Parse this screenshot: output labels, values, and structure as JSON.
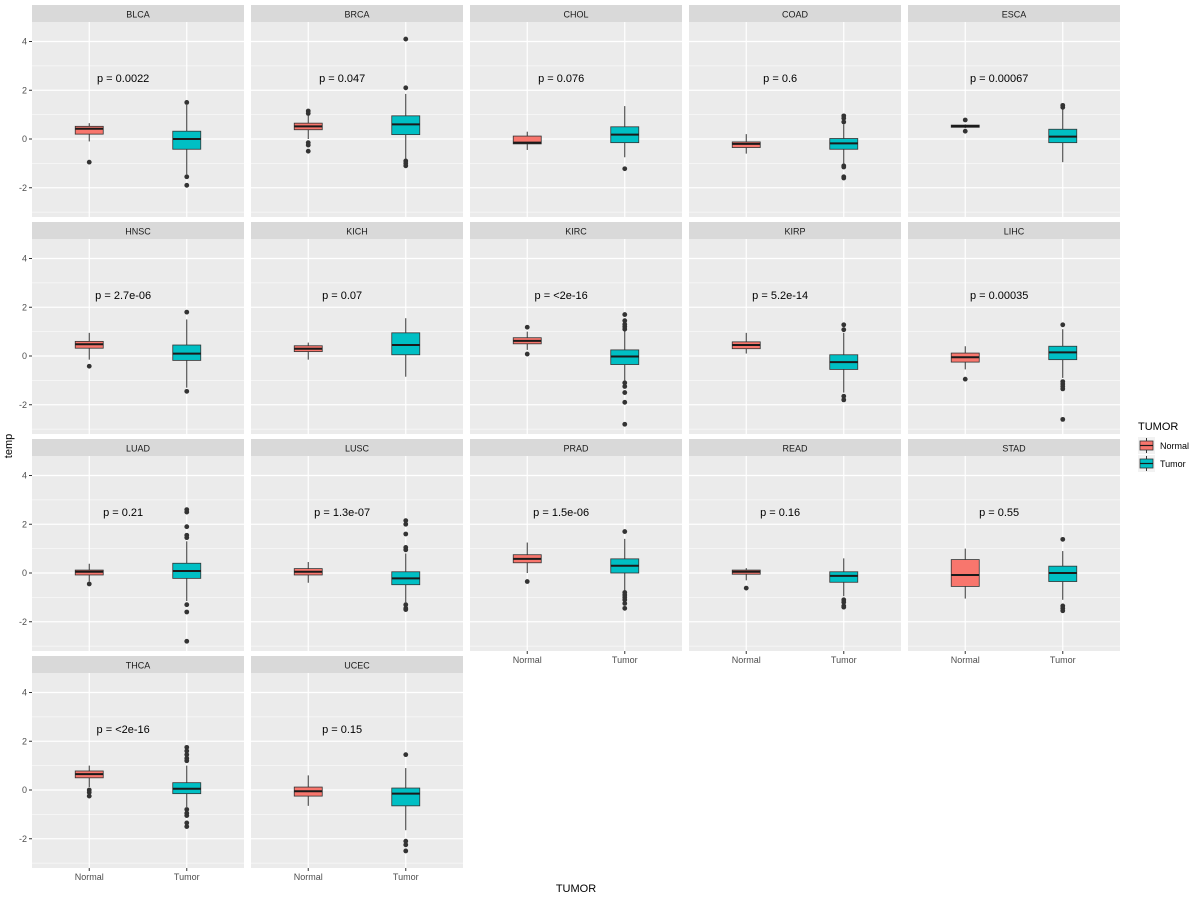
{
  "chart_data": {
    "type": "boxplot-facets",
    "xlabel": "TUMOR",
    "ylabel": "temp",
    "ylim": [
      -3.2,
      4.8
    ],
    "yticks": [
      -2,
      0,
      2,
      4
    ],
    "categories": [
      "Normal",
      "Tumor"
    ],
    "legend": {
      "title": "TUMOR",
      "position": "right",
      "entries": [
        {
          "label": "Normal",
          "color": "#F8766D"
        },
        {
          "label": "Tumor",
          "color": "#00BFC4"
        }
      ]
    },
    "colors": {
      "panel_bg": "#EBEBEB",
      "strip_bg": "#D9D9D9",
      "grid": "#FFFFFF",
      "normal": "#F8766D",
      "tumor": "#00BFC4",
      "outline": "#333333"
    },
    "facets": [
      {
        "name": "BLCA",
        "pvalue": "p = 0.0022",
        "normal": {
          "q1": 0.2,
          "median": 0.42,
          "q3": 0.52,
          "lower": -0.1,
          "upper": 0.65,
          "outliers": [
            -0.95
          ]
        },
        "tumor": {
          "q1": -0.42,
          "median": 0.0,
          "q3": 0.32,
          "lower": -1.45,
          "upper": 1.4,
          "outliers": [
            1.5,
            -1.55,
            -1.9
          ]
        }
      },
      {
        "name": "BRCA",
        "pvalue": "p = 0.047",
        "normal": {
          "q1": 0.38,
          "median": 0.52,
          "q3": 0.65,
          "lower": 0.0,
          "upper": 1.0,
          "outliers": [
            1.15,
            1.05,
            -0.15,
            -0.25,
            -0.5
          ]
        },
        "tumor": {
          "q1": 0.18,
          "median": 0.6,
          "q3": 0.95,
          "lower": -0.8,
          "upper": 1.85,
          "outliers": [
            4.1,
            2.1,
            -0.9,
            -1.0,
            -1.1
          ]
        }
      },
      {
        "name": "CHOL",
        "pvalue": "p = 0.076",
        "normal": {
          "q1": -0.2,
          "median": -0.15,
          "q3": 0.12,
          "lower": -0.45,
          "upper": 0.3,
          "outliers": []
        },
        "tumor": {
          "q1": -0.15,
          "median": 0.18,
          "q3": 0.5,
          "lower": -0.75,
          "upper": 1.35,
          "outliers": [
            -1.22
          ]
        }
      },
      {
        "name": "COAD",
        "pvalue": "p = 0.6",
        "normal": {
          "q1": -0.35,
          "median": -0.2,
          "q3": -0.12,
          "lower": -0.6,
          "upper": 0.2,
          "outliers": []
        },
        "tumor": {
          "q1": -0.42,
          "median": -0.18,
          "q3": 0.02,
          "lower": -1.0,
          "upper": 0.6,
          "outliers": [
            0.95,
            0.85,
            0.7,
            -1.1,
            -1.15,
            -1.55,
            -1.6
          ]
        }
      },
      {
        "name": "ESCA",
        "pvalue": "p = 0.00067",
        "normal": {
          "q1": 0.48,
          "median": 0.53,
          "q3": 0.57,
          "lower": 0.45,
          "upper": 0.6,
          "outliers": [
            0.78,
            0.32
          ]
        },
        "tumor": {
          "q1": -0.15,
          "median": 0.1,
          "q3": 0.4,
          "lower": -0.95,
          "upper": 1.25,
          "outliers": [
            1.38,
            1.3
          ]
        }
      },
      {
        "name": "HNSC",
        "pvalue": "p = 2.7e-06",
        "normal": {
          "q1": 0.32,
          "median": 0.48,
          "q3": 0.6,
          "lower": -0.15,
          "upper": 0.95,
          "outliers": [
            -0.42
          ]
        },
        "tumor": {
          "q1": -0.18,
          "median": 0.1,
          "q3": 0.45,
          "lower": -1.3,
          "upper": 1.5,
          "outliers": [
            1.8,
            -1.45
          ]
        }
      },
      {
        "name": "KICH",
        "pvalue": "p = 0.07",
        "normal": {
          "q1": 0.18,
          "median": 0.3,
          "q3": 0.42,
          "lower": -0.15,
          "upper": 0.55,
          "outliers": []
        },
        "tumor": {
          "q1": 0.05,
          "median": 0.45,
          "q3": 0.95,
          "lower": -0.85,
          "upper": 1.55,
          "outliers": []
        }
      },
      {
        "name": "KIRC",
        "pvalue": "p = <2e-16",
        "normal": {
          "q1": 0.5,
          "median": 0.62,
          "q3": 0.75,
          "lower": 0.25,
          "upper": 1.0,
          "outliers": [
            1.18,
            0.08
          ]
        },
        "tumor": {
          "q1": -0.35,
          "median": -0.02,
          "q3": 0.25,
          "lower": -1.0,
          "upper": 1.05,
          "outliers": [
            1.7,
            1.45,
            1.3,
            1.2,
            1.1,
            -1.1,
            -1.25,
            -1.5,
            -1.9,
            -2.8
          ]
        }
      },
      {
        "name": "KIRP",
        "pvalue": "p = 5.2e-14",
        "normal": {
          "q1": 0.3,
          "median": 0.45,
          "q3": 0.58,
          "lower": 0.1,
          "upper": 0.95,
          "outliers": []
        },
        "tumor": {
          "q1": -0.55,
          "median": -0.25,
          "q3": 0.05,
          "lower": -1.5,
          "upper": 0.95,
          "outliers": [
            1.28,
            1.08,
            -1.65,
            -1.8
          ]
        }
      },
      {
        "name": "LIHC",
        "pvalue": "p = 0.00035",
        "normal": {
          "q1": -0.25,
          "median": -0.05,
          "q3": 0.12,
          "lower": -0.55,
          "upper": 0.4,
          "outliers": [
            -0.95
          ]
        },
        "tumor": {
          "q1": -0.15,
          "median": 0.15,
          "q3": 0.4,
          "lower": -0.9,
          "upper": 1.1,
          "outliers": [
            1.28,
            -1.05,
            -1.15,
            -1.25,
            -1.35,
            -2.6
          ]
        }
      },
      {
        "name": "LUAD",
        "pvalue": "p = 0.21",
        "normal": {
          "q1": -0.08,
          "median": 0.05,
          "q3": 0.12,
          "lower": -0.35,
          "upper": 0.38,
          "outliers": [
            -0.45
          ]
        },
        "tumor": {
          "q1": -0.22,
          "median": 0.08,
          "q3": 0.4,
          "lower": -1.15,
          "upper": 1.3,
          "outliers": [
            2.6,
            2.5,
            1.9,
            1.55,
            1.45,
            -1.3,
            -1.6,
            -2.8
          ]
        }
      },
      {
        "name": "LUSC",
        "pvalue": "p = 1.3e-07",
        "normal": {
          "q1": -0.08,
          "median": 0.05,
          "q3": 0.18,
          "lower": -0.4,
          "upper": 0.45,
          "outliers": []
        },
        "tumor": {
          "q1": -0.48,
          "median": -0.22,
          "q3": 0.05,
          "lower": -1.2,
          "upper": 0.8,
          "outliers": [
            2.15,
            2.0,
            1.6,
            1.05,
            0.95,
            -1.3,
            -1.45,
            -1.5
          ]
        }
      },
      {
        "name": "PRAD",
        "pvalue": "p = 1.5e-06",
        "normal": {
          "q1": 0.42,
          "median": 0.58,
          "q3": 0.75,
          "lower": 0.0,
          "upper": 1.25,
          "outliers": [
            -0.35
          ]
        },
        "tumor": {
          "q1": 0.0,
          "median": 0.3,
          "q3": 0.58,
          "lower": -0.75,
          "upper": 1.4,
          "outliers": [
            1.7,
            -0.8,
            -0.9,
            -1.0,
            -1.1,
            -1.25,
            -1.45
          ]
        }
      },
      {
        "name": "READ",
        "pvalue": "p = 0.16",
        "normal": {
          "q1": -0.05,
          "median": 0.05,
          "q3": 0.12,
          "lower": -0.3,
          "upper": 0.2,
          "outliers": [
            -0.62
          ]
        },
        "tumor": {
          "q1": -0.38,
          "median": -0.12,
          "q3": 0.05,
          "lower": -0.95,
          "upper": 0.6,
          "outliers": [
            -1.1,
            -1.2,
            -1.35,
            -1.4
          ]
        }
      },
      {
        "name": "STAD",
        "pvalue": "p = 0.55",
        "normal": {
          "q1": -0.55,
          "median": -0.08,
          "q3": 0.55,
          "lower": -1.05,
          "upper": 1.0,
          "outliers": []
        },
        "tumor": {
          "q1": -0.35,
          "median": 0.0,
          "q3": 0.28,
          "lower": -1.1,
          "upper": 0.9,
          "outliers": [
            1.38,
            -1.35,
            -1.45,
            -1.55
          ]
        }
      },
      {
        "name": "THCA",
        "pvalue": "p = <2e-16",
        "normal": {
          "q1": 0.5,
          "median": 0.65,
          "q3": 0.78,
          "lower": 0.12,
          "upper": 1.0,
          "outliers": [
            0.0,
            -0.1,
            -0.25
          ]
        },
        "tumor": {
          "q1": -0.15,
          "median": 0.05,
          "q3": 0.3,
          "lower": -0.7,
          "upper": 1.0,
          "outliers": [
            1.75,
            1.6,
            1.45,
            1.3,
            1.2,
            -0.8,
            -0.95,
            -1.05,
            -1.35,
            -1.5
          ]
        }
      },
      {
        "name": "UCEC",
        "pvalue": "p = 0.15",
        "normal": {
          "q1": -0.25,
          "median": -0.05,
          "q3": 0.12,
          "lower": -0.65,
          "upper": 0.6,
          "outliers": []
        },
        "tumor": {
          "q1": -0.65,
          "median": -0.15,
          "q3": 0.08,
          "lower": -1.65,
          "upper": 0.9,
          "outliers": [
            1.45,
            -2.1,
            -2.25,
            -2.5
          ]
        }
      }
    ]
  }
}
